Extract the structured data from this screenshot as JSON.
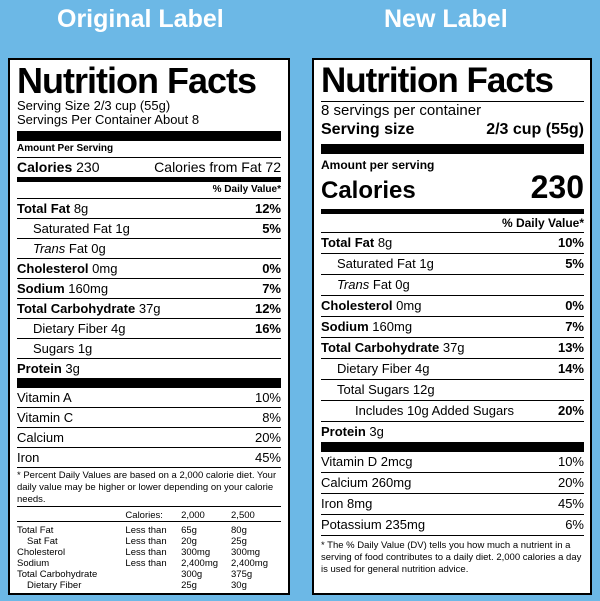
{
  "headers": {
    "original": "Original Label",
    "new": "New Label"
  },
  "original": {
    "title": "Nutrition Facts",
    "serving_size": "Serving Size 2/3 cup (55g)",
    "servings_per_container": "Servings Per Container About 8",
    "amount_per_serving": "Amount Per Serving",
    "calories_label": "Calories",
    "calories_value": "230",
    "calories_from_fat": "Calories from Fat 72",
    "daily_value_header": "% Daily Value*",
    "nutrients": [
      {
        "label": "Total Fat",
        "amount": "8g",
        "dv": "12%"
      },
      {
        "label": "Saturated Fat",
        "amount": "1g",
        "dv": "5%"
      },
      {
        "label": "Trans",
        "amount": "Fat 0g",
        "dv": ""
      },
      {
        "label": "Cholesterol",
        "amount": "0mg",
        "dv": "0%"
      },
      {
        "label": "Sodium",
        "amount": "160mg",
        "dv": "7%"
      },
      {
        "label": "Total Carbohydrate",
        "amount": "37g",
        "dv": "12%"
      },
      {
        "label": "Dietary Fiber",
        "amount": "4g",
        "dv": "16%"
      },
      {
        "label": "Sugars",
        "amount": "1g",
        "dv": ""
      },
      {
        "label": "Protein",
        "amount": "3g",
        "dv": ""
      }
    ],
    "vitamins": [
      {
        "label": "Vitamin A",
        "dv": "10%"
      },
      {
        "label": "Vitamin C",
        "dv": "8%"
      },
      {
        "label": "Calcium",
        "dv": "20%"
      },
      {
        "label": "Iron",
        "dv": "45%"
      }
    ],
    "footnote": "* Percent Daily Values are based on a 2,000 calorie diet. Your daily value may be higher or lower depending on your calorie needs.",
    "dv_table": {
      "header": [
        "",
        "Calories:",
        "2,000",
        "2,500"
      ],
      "rows": [
        [
          "Total Fat",
          "Less than",
          "65g",
          "80g"
        ],
        [
          "Sat Fat",
          "Less than",
          "20g",
          "25g"
        ],
        [
          "Cholesterol",
          "Less than",
          "300mg",
          "300mg"
        ],
        [
          "Sodium",
          "Less than",
          "2,400mg",
          "2,400mg"
        ],
        [
          "Total Carbohydrate",
          "",
          "300g",
          "375g"
        ],
        [
          "Dietary Fiber",
          "",
          "25g",
          "30g"
        ]
      ]
    }
  },
  "new": {
    "title": "Nutrition Facts",
    "servings_per_container": "8 servings per container",
    "serving_size_label": "Serving size",
    "serving_size_value": "2/3 cup (55g)",
    "amount_per_serving": "Amount per serving",
    "calories_label": "Calories",
    "calories_value": "230",
    "daily_value_header": "% Daily Value*",
    "nutrients": [
      {
        "label": "Total Fat",
        "amount": "8g",
        "dv": "10%"
      },
      {
        "label": "Saturated Fat",
        "amount": "1g",
        "dv": "5%"
      },
      {
        "label": "Trans",
        "amount": "Fat 0g",
        "dv": ""
      },
      {
        "label": "Cholesterol",
        "amount": "0mg",
        "dv": "0%"
      },
      {
        "label": "Sodium",
        "amount": "160mg",
        "dv": "7%"
      },
      {
        "label": "Total Carbohydrate",
        "amount": "37g",
        "dv": "13%"
      },
      {
        "label": "Dietary Fiber",
        "amount": "4g",
        "dv": "14%"
      },
      {
        "label": "Total Sugars",
        "amount": "12g",
        "dv": ""
      },
      {
        "label": "Includes 10g Added Sugars",
        "amount": "",
        "dv": "20%"
      },
      {
        "label": "Protein",
        "amount": "3g",
        "dv": ""
      }
    ],
    "vitamins": [
      {
        "label": "Vitamin D 2mcg",
        "dv": "10%"
      },
      {
        "label": "Calcium 260mg",
        "dv": "20%"
      },
      {
        "label": "Iron 8mg",
        "dv": "45%"
      },
      {
        "label": "Potassium 235mg",
        "dv": "6%"
      }
    ],
    "footnote": "* The % Daily Value (DV) tells you how much a nutrient in a serving of food contributes to a daily diet. 2,000 calories a day is used for general nutrition advice."
  }
}
